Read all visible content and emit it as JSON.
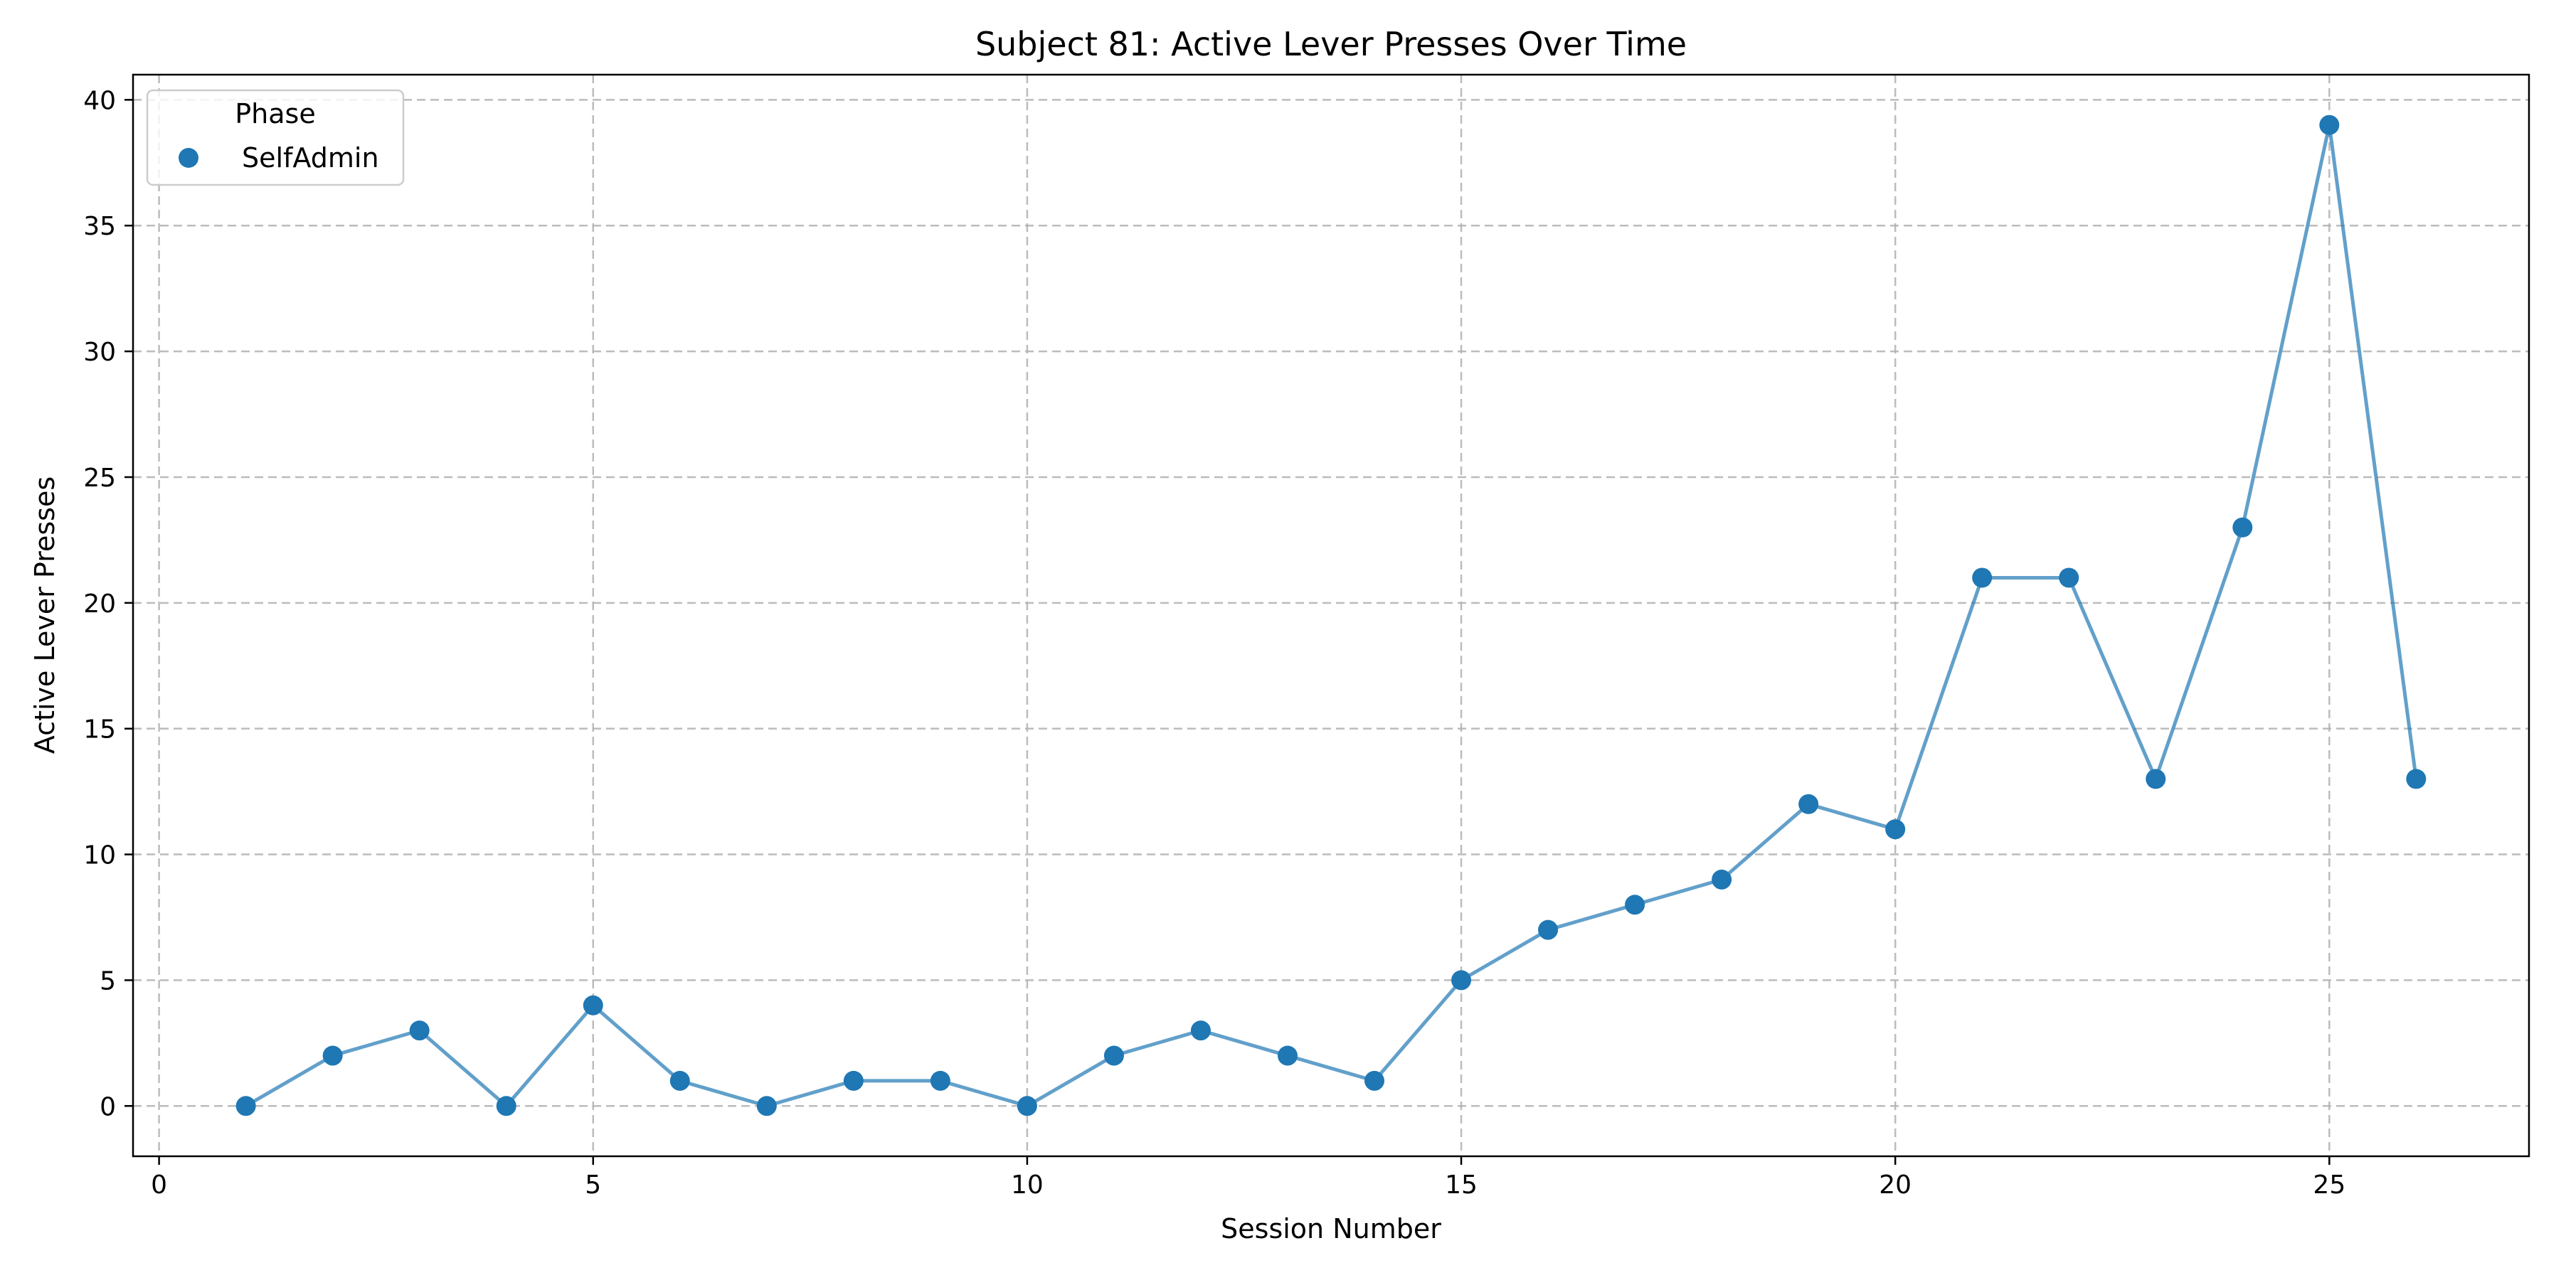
{
  "chart_data": {
    "type": "line",
    "title": "Subject 81: Active Lever Presses Over Time",
    "xlabel": "Session Number",
    "ylabel": "Active Lever Presses",
    "xlim": [
      -0.3,
      27.3
    ],
    "ylim": [
      -2,
      41
    ],
    "xticks": [
      0,
      5,
      10,
      15,
      20,
      25
    ],
    "yticks": [
      0,
      5,
      10,
      15,
      20,
      25,
      30,
      35,
      40
    ],
    "grid": true,
    "legend": {
      "title": "Phase",
      "placement": "top-left",
      "entries": [
        "SelfAdmin"
      ]
    },
    "series": [
      {
        "name": "SelfAdmin",
        "color": "#1f77b4",
        "marker": "circle",
        "x": [
          1,
          2,
          3,
          4,
          5,
          6,
          7,
          8,
          9,
          10,
          11,
          12,
          13,
          14,
          15,
          16,
          17,
          18,
          19,
          20,
          21,
          22,
          23,
          24,
          25,
          26
        ],
        "y": [
          0,
          2,
          3,
          0,
          4,
          1,
          0,
          1,
          1,
          0,
          2,
          3,
          2,
          1,
          5,
          7,
          8,
          9,
          12,
          11,
          21,
          21,
          13,
          23,
          39,
          13
        ]
      }
    ]
  }
}
